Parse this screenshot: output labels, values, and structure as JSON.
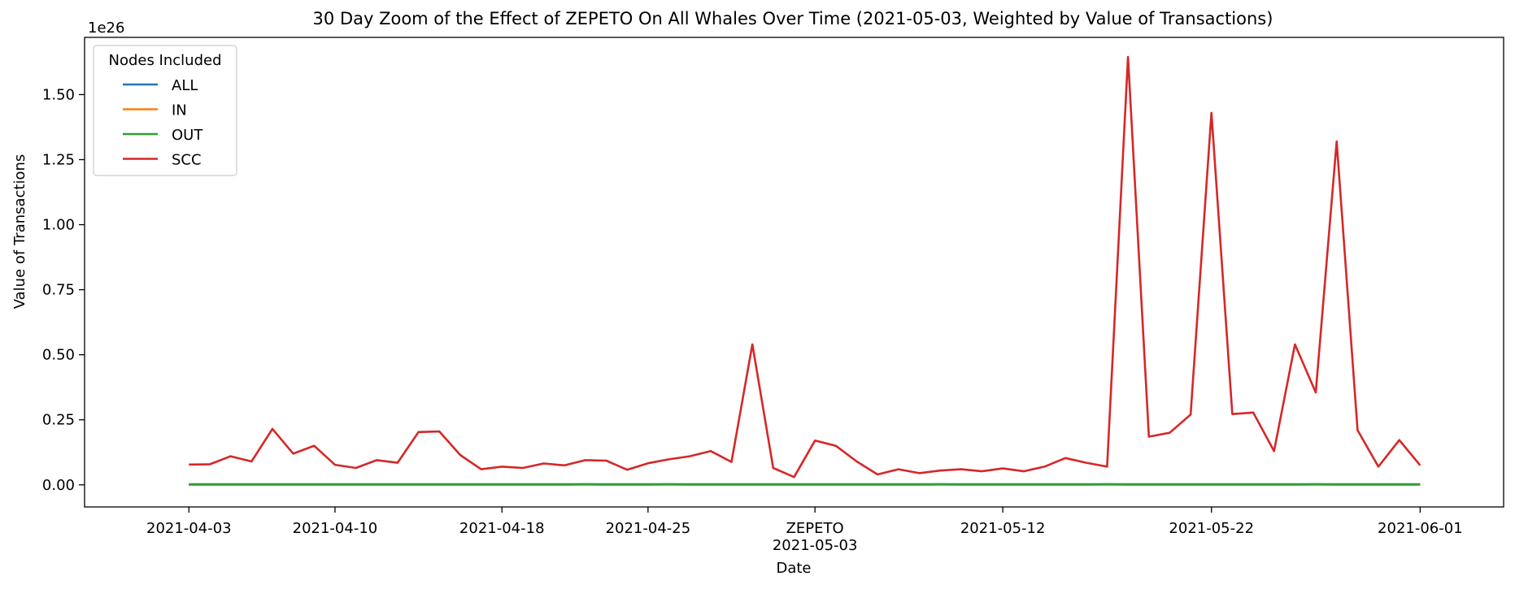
{
  "chart_data": {
    "type": "line",
    "title": "30 Day Zoom of the Effect of ZEPETO On All Whales Over Time (2021-05-03, Weighted by Value of Transactions)",
    "xlabel": "Date",
    "ylabel": "Value of Transactions",
    "y_offset_label": "1e26",
    "y_scale": 1e+26,
    "ylim": [
      -0.085,
      1.72
    ],
    "xlim": [
      "2021-03-29",
      "2021-06-05"
    ],
    "grid": false,
    "legend": {
      "title": "Nodes Included",
      "placement": "upper-left"
    },
    "x_ticks": [
      {
        "date": "2021-04-03",
        "label": "2021-04-03"
      },
      {
        "date": "2021-04-10",
        "label": "2021-04-10"
      },
      {
        "date": "2021-04-18",
        "label": "2021-04-18"
      },
      {
        "date": "2021-04-25",
        "label": "2021-04-25"
      },
      {
        "date": "2021-05-03",
        "label": "2021-05-03"
      },
      {
        "date": "2021-05-12",
        "label": "2021-05-12"
      },
      {
        "date": "2021-05-22",
        "label": "2021-05-22"
      },
      {
        "date": "2021-06-01",
        "label": "2021-06-01"
      }
    ],
    "y_ticks": [
      0.0,
      0.25,
      0.5,
      0.75,
      1.0,
      1.25,
      1.5
    ],
    "y_tick_labels": [
      "0.00",
      "0.25",
      "0.50",
      "0.75",
      "1.00",
      "1.25",
      "1.50"
    ],
    "annotation": {
      "date": "2021-05-03",
      "label": "ZEPETO"
    },
    "x": [
      "2021-04-03",
      "2021-04-04",
      "2021-04-05",
      "2021-04-06",
      "2021-04-07",
      "2021-04-08",
      "2021-04-09",
      "2021-04-10",
      "2021-04-11",
      "2021-04-12",
      "2021-04-13",
      "2021-04-14",
      "2021-04-15",
      "2021-04-16",
      "2021-04-17",
      "2021-04-18",
      "2021-04-19",
      "2021-04-20",
      "2021-04-21",
      "2021-04-22",
      "2021-04-23",
      "2021-04-24",
      "2021-04-25",
      "2021-04-26",
      "2021-04-27",
      "2021-04-28",
      "2021-04-29",
      "2021-04-30",
      "2021-05-01",
      "2021-05-02",
      "2021-05-03",
      "2021-05-04",
      "2021-05-05",
      "2021-05-06",
      "2021-05-07",
      "2021-05-08",
      "2021-05-09",
      "2021-05-10",
      "2021-05-11",
      "2021-05-12",
      "2021-05-13",
      "2021-05-14",
      "2021-05-15",
      "2021-05-16",
      "2021-05-17",
      "2021-05-18",
      "2021-05-19",
      "2021-05-20",
      "2021-05-21",
      "2021-05-22",
      "2021-05-23",
      "2021-05-24",
      "2021-05-25",
      "2021-05-26",
      "2021-05-27",
      "2021-05-28",
      "2021-05-29",
      "2021-05-30",
      "2021-05-31",
      "2021-06-01"
    ],
    "series": [
      {
        "name": "ALL",
        "color": "#1f77b4",
        "values": [
          0.002,
          0.002,
          0.002,
          0.002,
          0.002,
          0.002,
          0.002,
          0.002,
          0.002,
          0.002,
          0.002,
          0.002,
          0.002,
          0.002,
          0.002,
          0.002,
          0.002,
          0.002,
          0.002,
          0.002,
          0.002,
          0.002,
          0.002,
          0.002,
          0.002,
          0.002,
          0.002,
          0.002,
          0.002,
          0.002,
          0.002,
          0.002,
          0.002,
          0.002,
          0.002,
          0.002,
          0.002,
          0.002,
          0.002,
          0.002,
          0.002,
          0.002,
          0.002,
          0.002,
          0.002,
          0.002,
          0.002,
          0.002,
          0.002,
          0.002,
          0.002,
          0.002,
          0.002,
          0.002,
          0.002,
          0.002,
          0.002,
          0.002,
          0.002,
          0.002
        ]
      },
      {
        "name": "IN",
        "color": "#ff7f0e",
        "values": [
          0.001,
          0.001,
          0.001,
          0.001,
          0.001,
          0.001,
          0.001,
          0.001,
          0.001,
          0.001,
          0.001,
          0.001,
          0.001,
          0.001,
          0.001,
          0.001,
          0.001,
          0.001,
          0.001,
          0.001,
          0.001,
          0.001,
          0.001,
          0.001,
          0.001,
          0.001,
          0.001,
          0.001,
          0.001,
          0.001,
          0.001,
          0.001,
          0.001,
          0.001,
          0.001,
          0.001,
          0.001,
          0.001,
          0.001,
          0.001,
          0.001,
          0.001,
          0.001,
          0.001,
          0.001,
          0.001,
          0.001,
          0.001,
          0.001,
          0.001,
          0.001,
          0.001,
          0.001,
          0.001,
          0.001,
          0.001,
          0.001,
          0.001,
          0.001,
          0.001
        ]
      },
      {
        "name": "OUT",
        "color": "#2ca02c",
        "values": [
          0.001,
          0.001,
          0.001,
          0.001,
          0.001,
          0.001,
          0.001,
          0.001,
          0.001,
          0.001,
          0.001,
          0.001,
          0.001,
          0.001,
          0.001,
          0.001,
          0.001,
          0.001,
          0.001,
          0.002,
          0.001,
          0.001,
          0.001,
          0.002,
          0.001,
          0.001,
          0.001,
          0.001,
          0.001,
          0.001,
          0.001,
          0.001,
          0.001,
          0.001,
          0.001,
          0.001,
          0.002,
          0.001,
          0.001,
          0.001,
          0.001,
          0.001,
          0.001,
          0.001,
          0.002,
          0.001,
          0.001,
          0.001,
          0.001,
          0.001,
          0.001,
          0.001,
          0.001,
          0.001,
          0.002,
          0.001,
          0.001,
          0.001,
          0.001,
          0.001
        ]
      },
      {
        "name": "SCC",
        "color": "#d62728",
        "values": [
          0.078,
          0.079,
          0.11,
          0.09,
          0.215,
          0.12,
          0.15,
          0.077,
          0.065,
          0.095,
          0.085,
          0.203,
          0.205,
          0.115,
          0.06,
          0.07,
          0.065,
          0.082,
          0.075,
          0.095,
          0.093,
          0.058,
          0.083,
          0.098,
          0.11,
          0.13,
          0.088,
          0.54,
          0.065,
          0.03,
          0.17,
          0.15,
          0.09,
          0.04,
          0.06,
          0.045,
          0.055,
          0.06,
          0.052,
          0.063,
          0.052,
          0.07,
          0.103,
          0.085,
          0.07,
          1.645,
          0.185,
          0.2,
          0.27,
          1.43,
          0.272,
          0.278,
          0.13,
          0.54,
          0.355,
          1.32,
          0.21,
          0.07,
          0.172,
          0.075
        ]
      }
    ]
  }
}
